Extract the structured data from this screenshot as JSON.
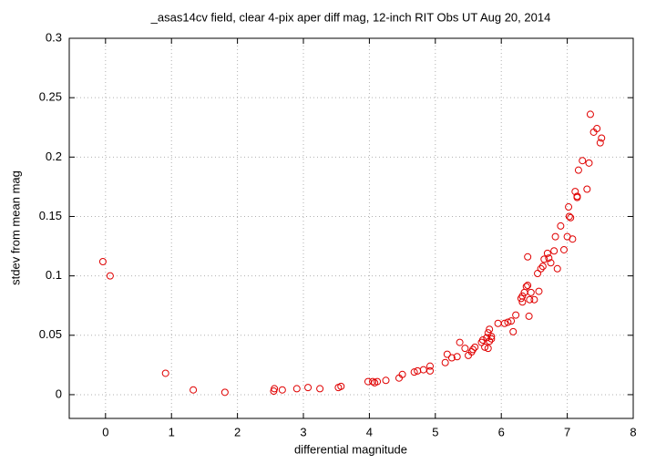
{
  "chart_data": {
    "type": "scatter",
    "title": "_asas14cv field, clear 4-pix aper diff mag,  12-inch RIT Obs UT Aug 20, 2014",
    "x_label": "differential magnitude",
    "y_label": "stdev from mean mag",
    "color": "#e00000",
    "grid": true,
    "xlim": [
      -0.55,
      8
    ],
    "ylim": [
      -0.02,
      0.3
    ],
    "xticks": [
      0,
      1,
      2,
      3,
      4,
      5,
      6,
      7,
      8
    ],
    "yticks": [
      0,
      0.05,
      0.1,
      0.15,
      0.2,
      0.25,
      0.3
    ],
    "x": [
      -0.04,
      0.07,
      0.91,
      1.33,
      1.81,
      2.55,
      2.56,
      2.68,
      2.9,
      3.07,
      3.25,
      3.53,
      3.57,
      3.98,
      4.05,
      4.08,
      4.12,
      4.25,
      4.45,
      4.5,
      4.68,
      4.73,
      4.82,
      4.92,
      4.92,
      5.15,
      5.18,
      5.25,
      5.33,
      5.37,
      5.45,
      5.5,
      5.55,
      5.57,
      5.6,
      5.7,
      5.72,
      5.75,
      5.78,
      5.8,
      5.8,
      5.82,
      5.82,
      5.85,
      5.85,
      5.95,
      6.05,
      6.1,
      6.15,
      6.18,
      6.22,
      6.3,
      6.32,
      6.32,
      6.35,
      6.38,
      6.4,
      6.4,
      6.42,
      6.43,
      6.45,
      6.5,
      6.55,
      6.57,
      6.6,
      6.63,
      6.65,
      6.7,
      6.72,
      6.75,
      6.8,
      6.82,
      6.85,
      6.9,
      6.95,
      7.0,
      7.02,
      7.03,
      7.05,
      7.08,
      7.12,
      7.15,
      7.15,
      7.17,
      7.23,
      7.3,
      7.33,
      7.35,
      7.4,
      7.45,
      7.5,
      7.52
    ],
    "values": [
      0.112,
      0.1,
      0.018,
      0.004,
      0.002,
      0.003,
      0.005,
      0.004,
      0.005,
      0.006,
      0.005,
      0.006,
      0.007,
      0.011,
      0.011,
      0.01,
      0.011,
      0.012,
      0.014,
      0.017,
      0.019,
      0.02,
      0.021,
      0.024,
      0.02,
      0.027,
      0.034,
      0.031,
      0.032,
      0.044,
      0.039,
      0.033,
      0.036,
      0.038,
      0.04,
      0.044,
      0.046,
      0.04,
      0.048,
      0.052,
      0.039,
      0.055,
      0.045,
      0.047,
      0.049,
      0.06,
      0.06,
      0.061,
      0.062,
      0.053,
      0.067,
      0.081,
      0.078,
      0.083,
      0.086,
      0.091,
      0.092,
      0.116,
      0.066,
      0.08,
      0.086,
      0.08,
      0.102,
      0.087,
      0.106,
      0.108,
      0.114,
      0.119,
      0.115,
      0.111,
      0.121,
      0.133,
      0.106,
      0.142,
      0.122,
      0.133,
      0.158,
      0.15,
      0.149,
      0.131,
      0.171,
      0.166,
      0.167,
      0.189,
      0.197,
      0.173,
      0.195,
      0.236,
      0.221,
      0.224,
      0.212,
      0.216
    ]
  }
}
